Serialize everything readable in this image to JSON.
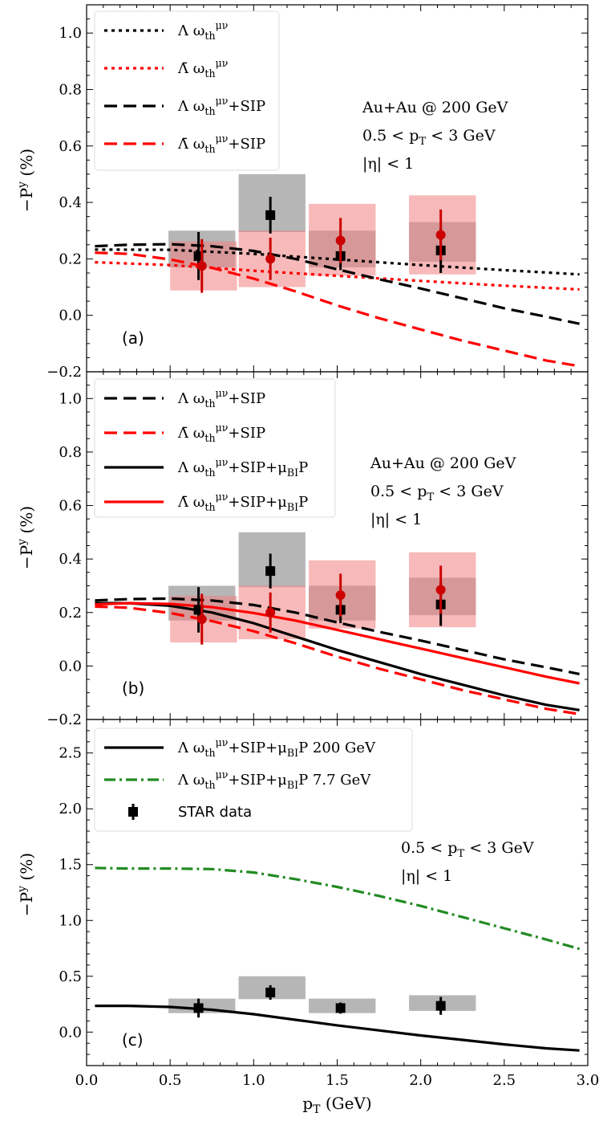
{
  "figure": {
    "xlabel": "p_T (GeV)",
    "x_ticks": [
      "0.0",
      "0.5",
      "1.0",
      "1.5",
      "2.0",
      "2.5",
      "3.0"
    ],
    "xlim": [
      0,
      3
    ]
  },
  "colors": {
    "black": "#000000",
    "red": "#ff0000",
    "green": "#228b22",
    "gray_box": "#a9a9a9",
    "red_box": "#f08080",
    "red_marker": "#cc0000"
  },
  "chart_data": [
    {
      "type": "line",
      "panel_label": "(a)",
      "ylabel": "−P^y (%)",
      "ylim": [
        -0.2,
        1.1
      ],
      "y_ticks": [
        "−0.2",
        "0.0",
        "0.2",
        "0.4",
        "0.6",
        "0.8",
        "1.0"
      ],
      "legend_position": "top-left",
      "annotation": [
        "Au+Au @ 200 GeV",
        "0.5 < p_T < 3 GeV",
        "|η| < 1"
      ],
      "series": [
        {
          "name": "Λ ω_th^μν",
          "color": "#000000",
          "style": "dotted",
          "x": [
            0.05,
            0.5,
            1.0,
            1.5,
            2.0,
            2.5,
            2.95
          ],
          "y": [
            0.233,
            0.232,
            0.218,
            0.198,
            0.178,
            0.16,
            0.145
          ]
        },
        {
          "name": "Λ̄ ω_th^μν",
          "color": "#ff0000",
          "style": "dotted",
          "x": [
            0.05,
            0.5,
            1.0,
            1.5,
            2.0,
            2.5,
            2.95
          ],
          "y": [
            0.188,
            0.178,
            0.158,
            0.14,
            0.122,
            0.105,
            0.092
          ]
        },
        {
          "name": "Λ ω_th^μν+SIP",
          "color": "#000000",
          "style": "dashed",
          "x": [
            0.05,
            0.25,
            0.5,
            0.75,
            1.0,
            1.25,
            1.5,
            1.75,
            2.0,
            2.25,
            2.5,
            2.75,
            2.95
          ],
          "y": [
            0.245,
            0.25,
            0.252,
            0.245,
            0.228,
            0.2,
            0.163,
            0.128,
            0.095,
            0.06,
            0.025,
            -0.005,
            -0.03
          ]
        },
        {
          "name": "Λ̄ ω_th^μν+SIP",
          "color": "#ff0000",
          "style": "dashed",
          "x": [
            0.05,
            0.25,
            0.5,
            0.75,
            1.0,
            1.25,
            1.5,
            1.75,
            2.0,
            2.25,
            2.5,
            2.75,
            2.95
          ],
          "y": [
            0.222,
            0.218,
            0.198,
            0.168,
            0.13,
            0.085,
            0.035,
            -0.01,
            -0.05,
            -0.09,
            -0.125,
            -0.16,
            -0.18
          ]
        }
      ],
      "data_points": [
        {
          "kind": "Λ",
          "x": 0.67,
          "y": 0.21,
          "stat_err": 0.085,
          "sys_box_x": [
            0.49,
            0.89
          ],
          "sys_box_y": [
            0.17,
            0.3
          ]
        },
        {
          "kind": "Λ",
          "x": 1.1,
          "y": 0.355,
          "stat_err": 0.065,
          "sys_box_x": [
            0.91,
            1.31
          ],
          "sys_box_y": [
            0.295,
            0.5
          ]
        },
        {
          "kind": "Λ",
          "x": 1.52,
          "y": 0.21,
          "stat_err": 0.05,
          "sys_box_x": [
            1.33,
            1.73
          ],
          "sys_box_y": [
            0.17,
            0.3
          ]
        },
        {
          "kind": "Λ",
          "x": 2.12,
          "y": 0.23,
          "stat_err": 0.08,
          "sys_box_x": [
            1.93,
            2.33
          ],
          "sys_box_y": [
            0.19,
            0.33
          ]
        },
        {
          "kind": "Λ̄",
          "x": 0.69,
          "y": 0.175,
          "stat_err": 0.095,
          "sys_box_x": [
            0.5,
            0.9
          ],
          "sys_box_y": [
            0.088,
            0.262
          ]
        },
        {
          "kind": "Λ̄",
          "x": 1.1,
          "y": 0.2,
          "stat_err": 0.075,
          "sys_box_x": [
            0.91,
            1.31
          ],
          "sys_box_y": [
            0.1,
            0.3
          ]
        },
        {
          "kind": "Λ̄",
          "x": 1.52,
          "y": 0.265,
          "stat_err": 0.08,
          "sys_box_x": [
            1.33,
            1.73
          ],
          "sys_box_y": [
            0.14,
            0.395
          ]
        },
        {
          "kind": "Λ̄",
          "x": 2.12,
          "y": 0.285,
          "stat_err": 0.09,
          "sys_box_x": [
            1.93,
            2.33
          ],
          "sys_box_y": [
            0.145,
            0.425
          ]
        }
      ]
    },
    {
      "type": "line",
      "panel_label": "(b)",
      "ylabel": "−P^y (%)",
      "ylim": [
        -0.2,
        1.1
      ],
      "y_ticks": [
        "−0.2",
        "0.0",
        "0.2",
        "0.4",
        "0.6",
        "0.8",
        "1.0"
      ],
      "legend_position": "top-left",
      "annotation": [
        "Au+Au @ 200 GeV",
        "0.5 < p_T < 3 GeV",
        "|η| < 1"
      ],
      "series": [
        {
          "name": "Λ ω_th^μν+SIP",
          "color": "#000000",
          "style": "dashed",
          "x": [
            0.05,
            0.25,
            0.5,
            0.75,
            1.0,
            1.25,
            1.5,
            1.75,
            2.0,
            2.25,
            2.5,
            2.75,
            2.95
          ],
          "y": [
            0.245,
            0.25,
            0.252,
            0.245,
            0.228,
            0.2,
            0.163,
            0.128,
            0.095,
            0.06,
            0.025,
            -0.005,
            -0.03
          ]
        },
        {
          "name": "Λ̄ ω_th^μν+SIP",
          "color": "#ff0000",
          "style": "dashed",
          "x": [
            0.05,
            0.25,
            0.5,
            0.75,
            1.0,
            1.25,
            1.5,
            1.75,
            2.0,
            2.25,
            2.5,
            2.75,
            2.95
          ],
          "y": [
            0.222,
            0.218,
            0.198,
            0.168,
            0.13,
            0.085,
            0.035,
            -0.01,
            -0.05,
            -0.09,
            -0.125,
            -0.16,
            -0.18
          ]
        },
        {
          "name": "Λ ω_th^μν+SIP+μ_BIP",
          "color": "#000000",
          "style": "solid",
          "x": [
            0.05,
            0.25,
            0.5,
            0.75,
            1.0,
            1.25,
            1.5,
            1.75,
            2.0,
            2.25,
            2.5,
            2.75,
            2.95
          ],
          "y": [
            0.235,
            0.235,
            0.225,
            0.2,
            0.16,
            0.11,
            0.06,
            0.015,
            -0.03,
            -0.07,
            -0.11,
            -0.145,
            -0.165
          ]
        },
        {
          "name": "Λ̄ ω_th^μν+SIP+μ_BIP",
          "color": "#ff0000",
          "style": "solid",
          "x": [
            0.05,
            0.25,
            0.5,
            0.75,
            1.0,
            1.25,
            1.5,
            1.75,
            2.0,
            2.25,
            2.5,
            2.75,
            2.95
          ],
          "y": [
            0.23,
            0.235,
            0.232,
            0.22,
            0.198,
            0.17,
            0.135,
            0.1,
            0.065,
            0.03,
            -0.005,
            -0.04,
            -0.065
          ]
        }
      ],
      "data_points": [
        {
          "kind": "Λ",
          "x": 0.67,
          "y": 0.21,
          "stat_err": 0.085,
          "sys_box_x": [
            0.49,
            0.89
          ],
          "sys_box_y": [
            0.17,
            0.3
          ]
        },
        {
          "kind": "Λ",
          "x": 1.1,
          "y": 0.355,
          "stat_err": 0.065,
          "sys_box_x": [
            0.91,
            1.31
          ],
          "sys_box_y": [
            0.295,
            0.5
          ]
        },
        {
          "kind": "Λ",
          "x": 1.52,
          "y": 0.21,
          "stat_err": 0.05,
          "sys_box_x": [
            1.33,
            1.73
          ],
          "sys_box_y": [
            0.17,
            0.3
          ]
        },
        {
          "kind": "Λ",
          "x": 2.12,
          "y": 0.23,
          "stat_err": 0.08,
          "sys_box_x": [
            1.93,
            2.33
          ],
          "sys_box_y": [
            0.19,
            0.33
          ]
        },
        {
          "kind": "Λ̄",
          "x": 0.69,
          "y": 0.175,
          "stat_err": 0.095,
          "sys_box_x": [
            0.5,
            0.9
          ],
          "sys_box_y": [
            0.088,
            0.262
          ]
        },
        {
          "kind": "Λ̄",
          "x": 1.1,
          "y": 0.2,
          "stat_err": 0.075,
          "sys_box_x": [
            0.91,
            1.31
          ],
          "sys_box_y": [
            0.1,
            0.3
          ]
        },
        {
          "kind": "Λ̄",
          "x": 1.52,
          "y": 0.265,
          "stat_err": 0.08,
          "sys_box_x": [
            1.33,
            1.73
          ],
          "sys_box_y": [
            0.14,
            0.395
          ]
        },
        {
          "kind": "Λ̄",
          "x": 2.12,
          "y": 0.285,
          "stat_err": 0.09,
          "sys_box_x": [
            1.93,
            2.33
          ],
          "sys_box_y": [
            0.145,
            0.425
          ]
        }
      ]
    },
    {
      "type": "line",
      "panel_label": "(c)",
      "ylabel": "−P^y (%)",
      "ylim": [
        -0.3,
        2.8
      ],
      "y_ticks": [
        "0.0",
        "0.5",
        "1.0",
        "1.5",
        "2.0",
        "2.5"
      ],
      "legend_position": "top-left",
      "annotation": [
        "0.5 < p_T < 3 GeV",
        "|η| < 1"
      ],
      "series": [
        {
          "name": "Λ ω_th^μν+SIP+μ_BIP 200 GeV",
          "color": "#000000",
          "style": "solid",
          "x": [
            0.05,
            0.25,
            0.5,
            0.75,
            1.0,
            1.25,
            1.5,
            1.75,
            2.0,
            2.25,
            2.5,
            2.75,
            2.95
          ],
          "y": [
            0.235,
            0.235,
            0.225,
            0.2,
            0.16,
            0.11,
            0.06,
            0.015,
            -0.03,
            -0.07,
            -0.11,
            -0.145,
            -0.165
          ]
        },
        {
          "name": "Λ ω_th^μν+SIP+μ_BIP 7.7 GeV",
          "color": "#228b22",
          "style": "dashdot",
          "x": [
            0.05,
            0.25,
            0.5,
            0.75,
            1.0,
            1.25,
            1.5,
            1.75,
            2.0,
            2.25,
            2.5,
            2.75,
            2.95
          ],
          "y": [
            1.47,
            1.465,
            1.465,
            1.46,
            1.43,
            1.37,
            1.3,
            1.22,
            1.13,
            1.03,
            0.93,
            0.83,
            0.745
          ]
        }
      ],
      "data_legend": "STAR data",
      "data_points": [
        {
          "kind": "Λ",
          "x": 0.67,
          "y": 0.215,
          "stat_err": 0.085,
          "sys_box_x": [
            0.49,
            0.89
          ],
          "sys_box_y": [
            0.17,
            0.3
          ]
        },
        {
          "kind": "Λ",
          "x": 1.1,
          "y": 0.355,
          "stat_err": 0.065,
          "sys_box_x": [
            0.91,
            1.31
          ],
          "sys_box_y": [
            0.295,
            0.5
          ]
        },
        {
          "kind": "Λ",
          "x": 1.52,
          "y": 0.215,
          "stat_err": 0.05,
          "sys_box_x": [
            1.33,
            1.73
          ],
          "sys_box_y": [
            0.17,
            0.3
          ]
        },
        {
          "kind": "Λ",
          "x": 2.12,
          "y": 0.235,
          "stat_err": 0.08,
          "sys_box_x": [
            1.93,
            2.33
          ],
          "sys_box_y": [
            0.19,
            0.33
          ]
        }
      ]
    }
  ]
}
